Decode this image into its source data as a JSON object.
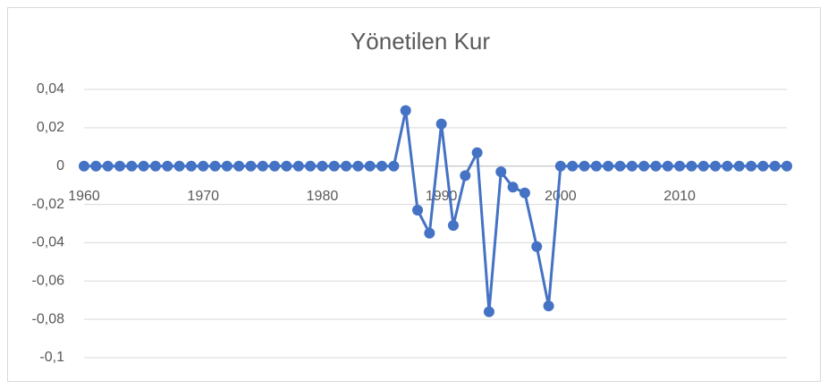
{
  "chart_data": {
    "type": "line",
    "title": "Yönetilen Kur",
    "x": [
      1960,
      1961,
      1962,
      1963,
      1964,
      1965,
      1966,
      1967,
      1968,
      1969,
      1970,
      1971,
      1972,
      1973,
      1974,
      1975,
      1976,
      1977,
      1978,
      1979,
      1980,
      1981,
      1982,
      1983,
      1984,
      1985,
      1986,
      1987,
      1988,
      1989,
      1990,
      1991,
      1992,
      1993,
      1994,
      1995,
      1996,
      1997,
      1998,
      1999,
      2000,
      2001,
      2002,
      2003,
      2004,
      2005,
      2006,
      2007,
      2008,
      2009,
      2010,
      2011,
      2012,
      2013,
      2014,
      2015,
      2016,
      2017,
      2018,
      2019
    ],
    "series": [
      {
        "name": "Yönetilen Kur",
        "color": "#4472c4",
        "values": [
          0,
          0,
          0,
          0,
          0,
          0,
          0,
          0,
          0,
          0,
          0,
          0,
          0,
          0,
          0,
          0,
          0,
          0,
          0,
          0,
          0,
          0,
          0,
          0,
          0,
          0,
          0,
          0.029,
          -0.023,
          -0.035,
          0.022,
          -0.031,
          -0.005,
          0.007,
          -0.076,
          -0.003,
          -0.011,
          -0.014,
          -0.042,
          -0.073,
          0,
          0,
          0,
          0,
          0,
          0,
          0,
          0,
          0,
          0,
          0,
          0,
          0,
          0,
          0,
          0,
          0,
          0,
          0,
          0
        ]
      }
    ],
    "xlim": [
      1960,
      2019
    ],
    "xticks": [
      1960,
      1970,
      1980,
      1990,
      2000,
      2010
    ],
    "ylim": [
      -0.1,
      0.04
    ],
    "yticks": [
      {
        "value": 0.04,
        "label": "0,04"
      },
      {
        "value": 0.02,
        "label": "0,02"
      },
      0,
      {
        "value": -0.02,
        "label": "-0,02"
      },
      {
        "value": -0.04,
        "label": "-0,04"
      },
      {
        "value": -0.06,
        "label": "-0,06"
      },
      {
        "value": -0.08,
        "label": "-0,08"
      },
      {
        "value": -0.1,
        "label": "-0,1"
      }
    ],
    "grid": true
  }
}
